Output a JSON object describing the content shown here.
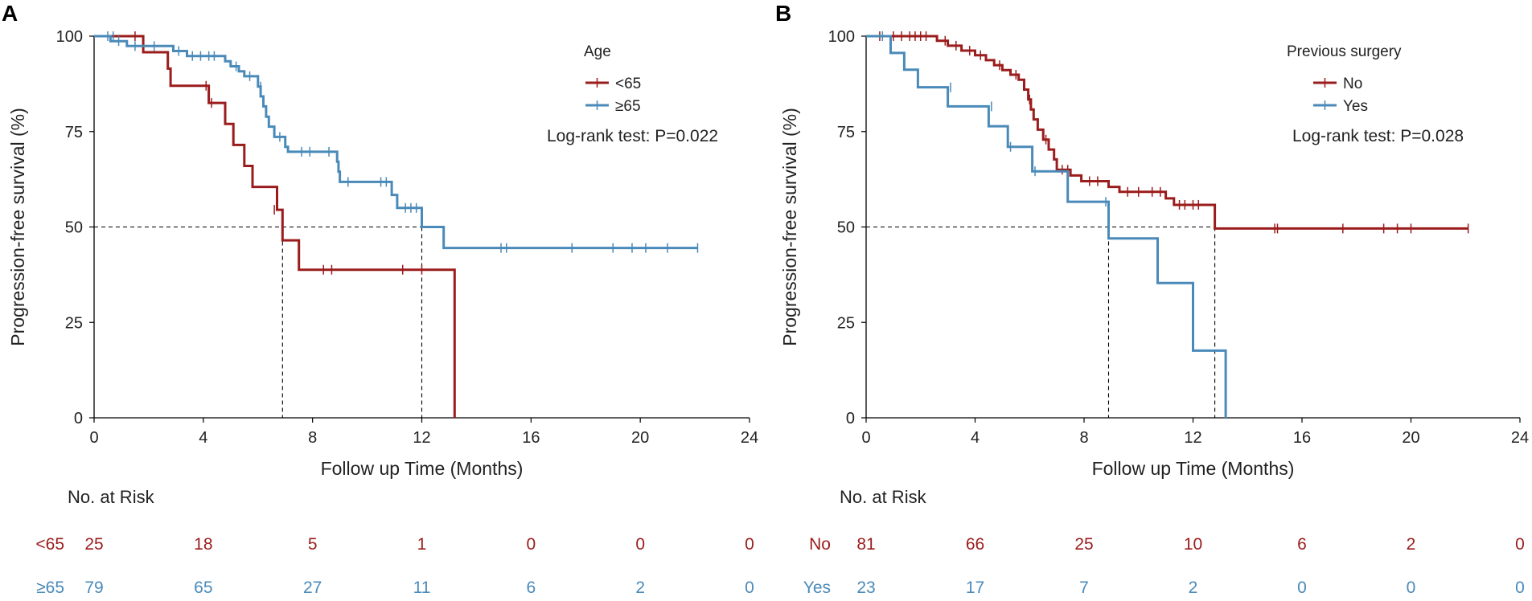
{
  "colors": {
    "red": "#9b1c1c",
    "blue": "#4a8ab9",
    "axis": "#000000",
    "text": "#222222"
  },
  "risk_title": "No. at Risk",
  "chart_data": [
    {
      "panel_letter": "A",
      "type": "line",
      "subtype": "kaplan-meier",
      "ylabel": "Progression-free survival (%)",
      "xlabel": "Follow up Time (Months)",
      "xlim": [
        0,
        24
      ],
      "ylim": [
        0,
        100
      ],
      "xticks": [
        0,
        4,
        8,
        12,
        16,
        20,
        24
      ],
      "yticks": [
        0,
        25,
        50,
        75,
        100
      ],
      "legend_title": "Age",
      "legend_position": "top-right",
      "annotation": "Log-rank test: P=0.022",
      "median_lines": [
        6.9,
        12.0
      ],
      "series": [
        {
          "name": "<65",
          "color": "#9b1c1c",
          "steps": [
            [
              0,
              100
            ],
            [
              1.8,
              100
            ],
            [
              1.8,
              95.8
            ],
            [
              2.7,
              95.8
            ],
            [
              2.7,
              91.5
            ],
            [
              2.8,
              91.5
            ],
            [
              2.8,
              87
            ],
            [
              4.2,
              87
            ],
            [
              4.2,
              82.5
            ],
            [
              4.8,
              82.5
            ],
            [
              4.8,
              77
            ],
            [
              5.1,
              77
            ],
            [
              5.1,
              71.5
            ],
            [
              5.5,
              71.5
            ],
            [
              5.5,
              66
            ],
            [
              5.8,
              66
            ],
            [
              5.8,
              60.5
            ],
            [
              6.7,
              60.5
            ],
            [
              6.7,
              54.5
            ],
            [
              6.9,
              54.5
            ],
            [
              6.9,
              46.5
            ],
            [
              7.5,
              46.5
            ],
            [
              7.5,
              38.8
            ],
            [
              13.2,
              38.8
            ],
            [
              13.2,
              0
            ]
          ],
          "censors": [
            [
              1.5,
              100
            ],
            [
              4.1,
              87
            ],
            [
              4.3,
              82.5
            ],
            [
              6.6,
              54.5
            ],
            [
              8.4,
              38.8
            ],
            [
              8.7,
              38.8
            ],
            [
              11.3,
              38.8
            ],
            [
              12.0,
              38.8
            ]
          ]
        },
        {
          "name": "≥65",
          "color": "#4a8ab9",
          "steps": [
            [
              0,
              100
            ],
            [
              0.6,
              100
            ],
            [
              0.6,
              98.7
            ],
            [
              1.2,
              98.7
            ],
            [
              1.2,
              97.4
            ],
            [
              2.9,
              97.4
            ],
            [
              2.9,
              96.1
            ],
            [
              3.4,
              96.1
            ],
            [
              3.4,
              94.8
            ],
            [
              4.8,
              94.8
            ],
            [
              4.8,
              93.4
            ],
            [
              5.0,
              93.4
            ],
            [
              5.0,
              92.1
            ],
            [
              5.3,
              92.1
            ],
            [
              5.3,
              90.8
            ],
            [
              5.5,
              90.8
            ],
            [
              5.5,
              89.5
            ],
            [
              6.0,
              89.5
            ],
            [
              6.0,
              86.8
            ],
            [
              6.1,
              86.8
            ],
            [
              6.1,
              84.2
            ],
            [
              6.2,
              84.2
            ],
            [
              6.2,
              81.6
            ],
            [
              6.3,
              81.6
            ],
            [
              6.3,
              78.9
            ],
            [
              6.4,
              78.9
            ],
            [
              6.4,
              76.3
            ],
            [
              6.6,
              76.3
            ],
            [
              6.6,
              73.6
            ],
            [
              7.0,
              73.6
            ],
            [
              7.0,
              71.0
            ],
            [
              7.1,
              71.0
            ],
            [
              7.1,
              69.7
            ],
            [
              8.9,
              69.7
            ],
            [
              8.9,
              67.1
            ],
            [
              8.95,
              67.1
            ],
            [
              8.95,
              64.5
            ],
            [
              9.0,
              64.5
            ],
            [
              9.0,
              61.8
            ],
            [
              10.9,
              61.8
            ],
            [
              10.9,
              58.4
            ],
            [
              11.1,
              58.4
            ],
            [
              11.1,
              55.0
            ],
            [
              12.0,
              55.0
            ],
            [
              12.0,
              50.0
            ],
            [
              12.8,
              50.0
            ],
            [
              12.8,
              44.5
            ],
            [
              22.1,
              44.5
            ]
          ],
          "censors": [
            [
              0.5,
              100
            ],
            [
              0.7,
              100
            ],
            [
              0.9,
              98.7
            ],
            [
              1.5,
              97.4
            ],
            [
              2.2,
              97.4
            ],
            [
              3.1,
              96.1
            ],
            [
              3.6,
              94.8
            ],
            [
              3.9,
              94.8
            ],
            [
              4.2,
              94.8
            ],
            [
              4.4,
              94.8
            ],
            [
              5.2,
              92.1
            ],
            [
              5.7,
              89.5
            ],
            [
              6.1,
              86.8
            ],
            [
              6.8,
              73.6
            ],
            [
              7.6,
              69.7
            ],
            [
              7.9,
              69.7
            ],
            [
              8.6,
              69.7
            ],
            [
              9.3,
              61.8
            ],
            [
              10.5,
              61.8
            ],
            [
              10.7,
              61.8
            ],
            [
              11.4,
              55.0
            ],
            [
              11.6,
              55.0
            ],
            [
              11.8,
              55.0
            ],
            [
              14.9,
              44.5
            ],
            [
              15.1,
              44.5
            ],
            [
              17.5,
              44.5
            ],
            [
              19.0,
              44.5
            ],
            [
              19.7,
              44.5
            ],
            [
              20.2,
              44.5
            ],
            [
              21.0,
              44.5
            ],
            [
              22.1,
              44.5
            ]
          ]
        }
      ],
      "risk_rows": [
        {
          "label": "<65",
          "color": "#9b1c1c",
          "counts": [
            "25",
            "18",
            "5",
            "1",
            "0",
            "0",
            "0"
          ]
        },
        {
          "label": "≥65",
          "color": "#4a8ab9",
          "counts": [
            "79",
            "65",
            "27",
            "11",
            "6",
            "2",
            "0"
          ]
        }
      ]
    },
    {
      "panel_letter": "B",
      "type": "line",
      "subtype": "kaplan-meier",
      "ylabel": "Progression-free survival (%)",
      "xlabel": "Follow up Time (Months)",
      "xlim": [
        0,
        24
      ],
      "ylim": [
        0,
        100
      ],
      "xticks": [
        0,
        4,
        8,
        12,
        16,
        20,
        24
      ],
      "yticks": [
        0,
        25,
        50,
        75,
        100
      ],
      "legend_title": "Previous surgery",
      "legend_position": "top-right",
      "annotation": "Log-rank test: P=0.028",
      "median_lines": [
        8.9,
        12.8
      ],
      "series": [
        {
          "name": "No",
          "color": "#9b1c1c",
          "steps": [
            [
              0,
              100
            ],
            [
              2.6,
              100
            ],
            [
              2.6,
              98.8
            ],
            [
              3.0,
              98.8
            ],
            [
              3.0,
              97.5
            ],
            [
              3.5,
              97.5
            ],
            [
              3.5,
              96.2
            ],
            [
              4.0,
              96.2
            ],
            [
              4.0,
              95.0
            ],
            [
              4.4,
              95.0
            ],
            [
              4.4,
              93.7
            ],
            [
              4.7,
              93.7
            ],
            [
              4.7,
              92.4
            ],
            [
              5.0,
              92.4
            ],
            [
              5.0,
              91.1
            ],
            [
              5.3,
              91.1
            ],
            [
              5.3,
              89.9
            ],
            [
              5.6,
              89.9
            ],
            [
              5.6,
              88.6
            ],
            [
              5.8,
              88.6
            ],
            [
              5.8,
              86.0
            ],
            [
              5.95,
              86.0
            ],
            [
              5.95,
              83.4
            ],
            [
              6.05,
              83.4
            ],
            [
              6.05,
              80.8
            ],
            [
              6.15,
              80.8
            ],
            [
              6.15,
              78.2
            ],
            [
              6.3,
              78.2
            ],
            [
              6.3,
              75.5
            ],
            [
              6.5,
              75.5
            ],
            [
              6.5,
              72.9
            ],
            [
              6.7,
              72.9
            ],
            [
              6.7,
              70.3
            ],
            [
              6.9,
              70.3
            ],
            [
              6.9,
              67.7
            ],
            [
              7.0,
              67.7
            ],
            [
              7.0,
              65.0
            ],
            [
              7.5,
              65.0
            ],
            [
              7.5,
              63.5
            ],
            [
              7.9,
              63.5
            ],
            [
              7.9,
              62.0
            ],
            [
              8.9,
              62.0
            ],
            [
              8.9,
              60.5
            ],
            [
              9.3,
              60.5
            ],
            [
              9.3,
              59.2
            ],
            [
              11.0,
              59.2
            ],
            [
              11.0,
              57.5
            ],
            [
              11.3,
              57.5
            ],
            [
              11.3,
              55.8
            ],
            [
              12.8,
              55.8
            ],
            [
              12.8,
              49.6
            ],
            [
              22.1,
              49.6
            ]
          ],
          "censors": [
            [
              0.5,
              100
            ],
            [
              1.0,
              100
            ],
            [
              1.3,
              100
            ],
            [
              1.6,
              100
            ],
            [
              1.8,
              100
            ],
            [
              2.0,
              100
            ],
            [
              2.2,
              100
            ],
            [
              2.9,
              98.8
            ],
            [
              3.3,
              97.5
            ],
            [
              3.8,
              96.2
            ],
            [
              4.2,
              95.0
            ],
            [
              4.9,
              92.4
            ],
            [
              5.5,
              89.9
            ],
            [
              6.0,
              83.4
            ],
            [
              6.6,
              72.9
            ],
            [
              7.2,
              65.0
            ],
            [
              7.4,
              65.0
            ],
            [
              8.2,
              62.0
            ],
            [
              8.5,
              62.0
            ],
            [
              9.6,
              59.2
            ],
            [
              10.0,
              59.2
            ],
            [
              10.5,
              59.2
            ],
            [
              10.8,
              59.2
            ],
            [
              11.5,
              55.8
            ],
            [
              11.7,
              55.8
            ],
            [
              12.0,
              55.8
            ],
            [
              12.2,
              55.8
            ],
            [
              15.0,
              49.6
            ],
            [
              15.1,
              49.6
            ],
            [
              17.5,
              49.6
            ],
            [
              19.0,
              49.6
            ],
            [
              19.5,
              49.6
            ],
            [
              20.0,
              49.6
            ],
            [
              22.1,
              49.6
            ]
          ]
        },
        {
          "name": "Yes",
          "color": "#4a8ab9",
          "steps": [
            [
              0,
              100
            ],
            [
              0.9,
              100
            ],
            [
              0.9,
              95.6
            ],
            [
              1.4,
              95.6
            ],
            [
              1.4,
              91.2
            ],
            [
              1.9,
              91.2
            ],
            [
              1.9,
              86.6
            ],
            [
              3.0,
              86.6
            ],
            [
              3.0,
              81.6
            ],
            [
              4.5,
              81.6
            ],
            [
              4.5,
              76.4
            ],
            [
              5.2,
              76.4
            ],
            [
              5.2,
              71.0
            ],
            [
              6.1,
              71.0
            ],
            [
              6.1,
              64.6
            ],
            [
              7.4,
              64.6
            ],
            [
              7.4,
              56.6
            ],
            [
              8.9,
              56.6
            ],
            [
              8.9,
              47.0
            ],
            [
              10.7,
              47.0
            ],
            [
              10.7,
              35.3
            ],
            [
              12.0,
              35.3
            ],
            [
              12.0,
              17.6
            ],
            [
              13.2,
              17.6
            ],
            [
              13.2,
              0
            ]
          ],
          "censors": [
            [
              0.6,
              100
            ],
            [
              3.1,
              86.6
            ],
            [
              4.6,
              81.6
            ],
            [
              5.3,
              71.0
            ],
            [
              6.2,
              64.6
            ],
            [
              8.8,
              56.6
            ]
          ]
        }
      ],
      "risk_rows": [
        {
          "label": "No",
          "color": "#9b1c1c",
          "counts": [
            "81",
            "66",
            "25",
            "10",
            "6",
            "2",
            "0"
          ]
        },
        {
          "label": "Yes",
          "color": "#4a8ab9",
          "counts": [
            "23",
            "17",
            "7",
            "2",
            "0",
            "0",
            "0"
          ]
        }
      ]
    }
  ]
}
